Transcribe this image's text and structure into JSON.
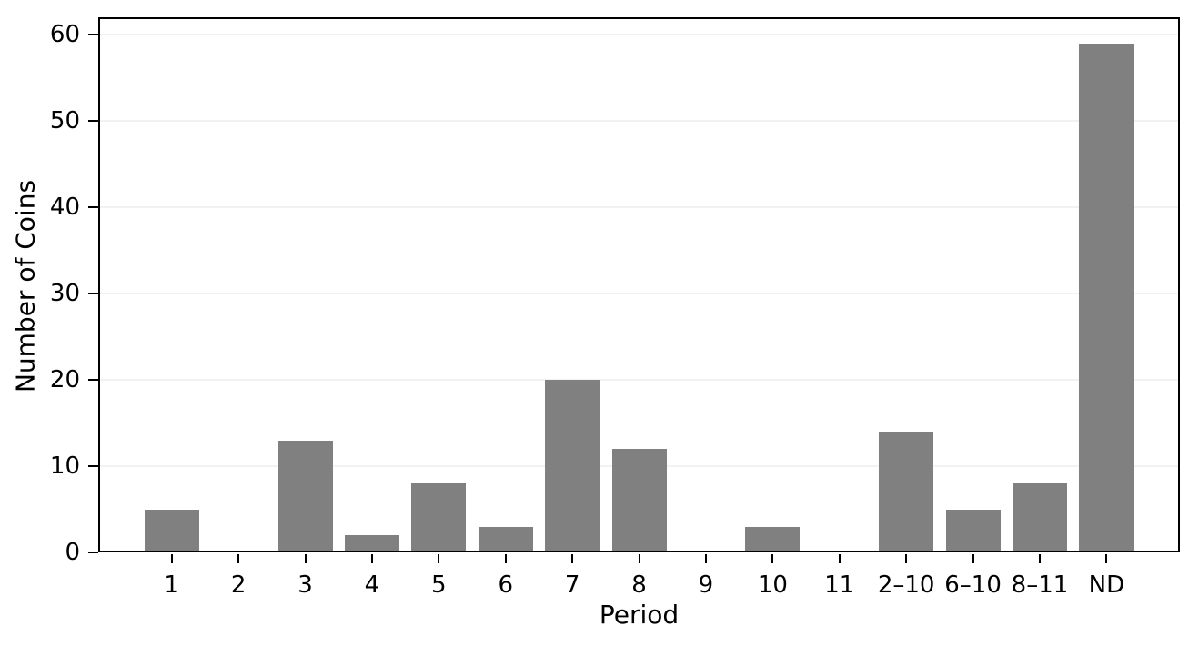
{
  "chart_data": {
    "type": "bar",
    "title": "",
    "xlabel": "Period",
    "ylabel": "Number of Coins",
    "categories": [
      "1",
      "2",
      "3",
      "4",
      "5",
      "6",
      "7",
      "8",
      "9",
      "10",
      "11",
      "2–10",
      "6–10",
      "8–11",
      "ND"
    ],
    "values": [
      5,
      0,
      13,
      2,
      8,
      3,
      20,
      12,
      0,
      3,
      0,
      14,
      5,
      8,
      59
    ],
    "yticks": [
      0,
      10,
      20,
      30,
      40,
      50,
      60
    ],
    "ylim": [
      0,
      62
    ],
    "grid": "horizontal-gridlines-on",
    "legend": "none",
    "bar_color": "#808080",
    "gridline_color": "#f2f2f2",
    "axis_color": "#000000",
    "background_color": "#ffffff"
  }
}
